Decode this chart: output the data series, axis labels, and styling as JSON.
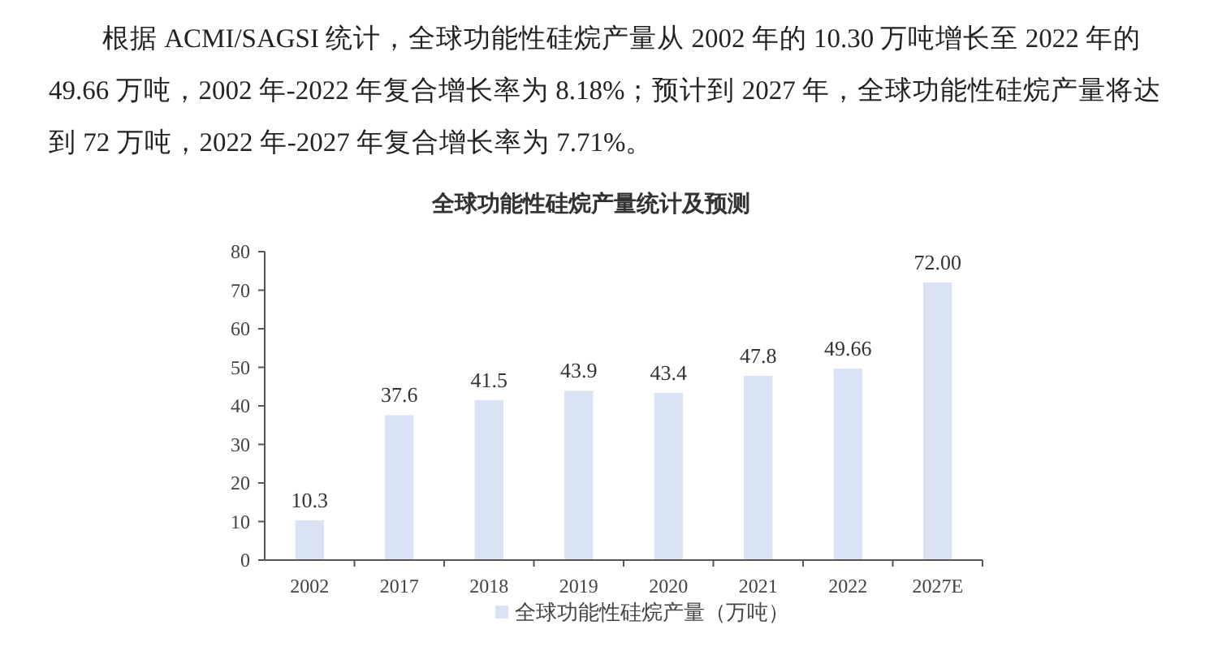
{
  "chart_data": {
    "type": "bar",
    "title": "全球功能性硅烷产量统计及预测",
    "annotations": [
      "根据 ACMI/SAGSI 统计，全球功能性硅烷产量从 2002 年的 10.30 万吨增长至 2022 年的 49.66 万吨，2002 年-2022 年复合增长率为 8.18%；预计到 2027 年，全球功能性硅烷产量将达到 72 万吨，2022 年-2027 年复合增长率为 7.71%。"
    ],
    "categories": [
      "2002",
      "2017",
      "2018",
      "2019",
      "2020",
      "2021",
      "2022",
      "2027E"
    ],
    "series": [
      {
        "name": "全球功能性硅烷产量（万吨）",
        "color": "#dae3f3",
        "values": [
          10.3,
          37.6,
          41.5,
          43.9,
          43.4,
          47.8,
          49.66,
          72.0
        ],
        "value_labels": [
          "10.3",
          "37.6",
          "41.5",
          "43.9",
          "43.4",
          "47.8",
          "49.66",
          "72.00"
        ]
      }
    ],
    "ylim": [
      0,
      80
    ],
    "yticks": [
      0,
      10,
      20,
      30,
      40,
      50,
      60,
      70,
      80
    ],
    "grid": false,
    "legend": "bottom"
  }
}
